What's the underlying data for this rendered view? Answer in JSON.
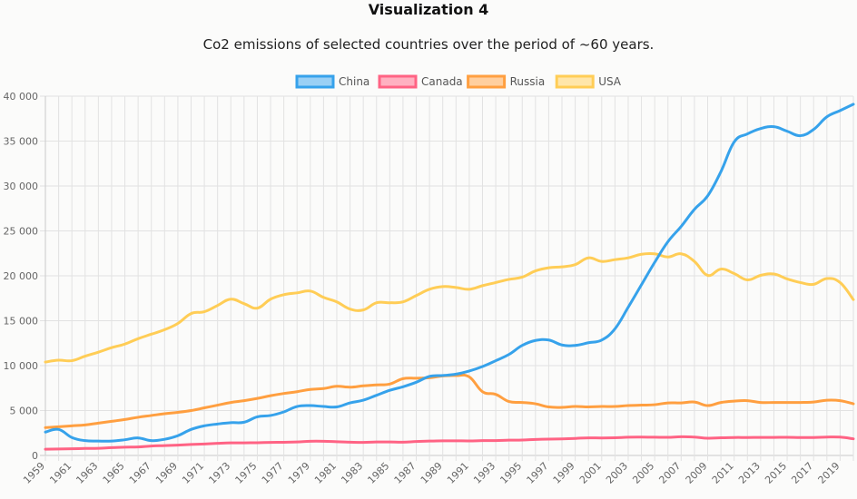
{
  "page": {
    "heading": "Visualization 4",
    "subheading": "Co2 emissions of selected countries over the period of ~60 years."
  },
  "chart_data": {
    "type": "line",
    "title": "",
    "xlabel": "",
    "ylabel": "",
    "ylim": [
      0,
      40000
    ],
    "y_ticks": [
      0,
      5000,
      10000,
      15000,
      20000,
      25000,
      30000,
      35000,
      40000
    ],
    "y_tick_labels": [
      "0",
      "5 000",
      "10 000",
      "15 000",
      "20 000",
      "25 000",
      "30 000",
      "35 000",
      "40 000"
    ],
    "x_tick_labels": [
      "1959",
      "1961",
      "1963",
      "1965",
      "1967",
      "1969",
      "1971",
      "1973",
      "1975",
      "1977",
      "1979",
      "1981",
      "1983",
      "1985",
      "1987",
      "1989",
      "1991",
      "1993",
      "1995",
      "1997",
      "1999",
      "2001",
      "2003",
      "2005",
      "2007",
      "2009",
      "2011",
      "2013",
      "2015",
      "2017",
      "2019"
    ],
    "grid": true,
    "legend_position": "top",
    "x": [
      1959,
      1960,
      1961,
      1962,
      1963,
      1964,
      1965,
      1966,
      1967,
      1968,
      1969,
      1970,
      1971,
      1972,
      1973,
      1974,
      1975,
      1976,
      1977,
      1978,
      1979,
      1980,
      1981,
      1982,
      1983,
      1984,
      1985,
      1986,
      1987,
      1988,
      1989,
      1990,
      1991,
      1992,
      1993,
      1994,
      1995,
      1996,
      1997,
      1998,
      1999,
      2000,
      2001,
      2002,
      2003,
      2004,
      2005,
      2006,
      2007,
      2008,
      2009,
      2010,
      2011,
      2012,
      2013,
      2014,
      2015,
      2016,
      2017,
      2018,
      2019,
      2020
    ],
    "series": [
      {
        "name": "China",
        "color": "#36a2eb",
        "fill": "#9ad0f5",
        "values": [
          2600,
          2900,
          2000,
          1650,
          1600,
          1600,
          1750,
          1950,
          1650,
          1800,
          2200,
          2900,
          3300,
          3500,
          3650,
          3700,
          4300,
          4450,
          4850,
          5450,
          5550,
          5450,
          5400,
          5850,
          6150,
          6700,
          7250,
          7650,
          8150,
          8800,
          8900,
          9050,
          9400,
          9900,
          10550,
          11250,
          12250,
          12800,
          12850,
          12300,
          12250,
          12550,
          12850,
          14100,
          16500,
          19000,
          21500,
          23800,
          25500,
          27400,
          28900,
          31600,
          34900,
          35800,
          36400,
          36600,
          36100,
          35600,
          36300,
          37700,
          38400,
          39100
        ]
      },
      {
        "name": "Canada",
        "color": "#ff6384",
        "fill": "#ffb1c1",
        "values": [
          700,
          720,
          740,
          780,
          800,
          870,
          920,
          950,
          1050,
          1100,
          1150,
          1220,
          1280,
          1350,
          1400,
          1400,
          1420,
          1450,
          1470,
          1500,
          1580,
          1580,
          1530,
          1480,
          1450,
          1500,
          1500,
          1480,
          1550,
          1600,
          1630,
          1630,
          1620,
          1650,
          1660,
          1700,
          1720,
          1780,
          1820,
          1850,
          1900,
          1960,
          1950,
          1970,
          2030,
          2040,
          2030,
          2020,
          2080,
          2050,
          1920,
          1970,
          2000,
          2000,
          2010,
          2010,
          2020,
          1990,
          2000,
          2050,
          2040,
          1850
        ]
      },
      {
        "name": "Russia",
        "color": "#ff9f40",
        "fill": "#ffcf9f",
        "values": [
          3100,
          3200,
          3300,
          3400,
          3600,
          3800,
          4000,
          4250,
          4450,
          4650,
          4800,
          5000,
          5300,
          5600,
          5900,
          6100,
          6350,
          6650,
          6900,
          7100,
          7350,
          7450,
          7700,
          7600,
          7750,
          7850,
          7950,
          8550,
          8600,
          8650,
          8850,
          8900,
          8750,
          7100,
          6800,
          6000,
          5900,
          5750,
          5400,
          5350,
          5450,
          5400,
          5450,
          5450,
          5550,
          5600,
          5650,
          5850,
          5850,
          5950,
          5550,
          5900,
          6050,
          6100,
          5900,
          5900,
          5900,
          5900,
          5950,
          6150,
          6100,
          5750
        ]
      },
      {
        "name": "USA",
        "color": "#ffcd56",
        "fill": "#ffe6aa",
        "values": [
          10400,
          10600,
          10550,
          11050,
          11500,
          12000,
          12400,
          13000,
          13500,
          14000,
          14700,
          15800,
          16000,
          16700,
          17400,
          16900,
          16400,
          17400,
          17900,
          18100,
          18300,
          17600,
          17100,
          16300,
          16200,
          17000,
          17000,
          17100,
          17800,
          18500,
          18800,
          18700,
          18500,
          18900,
          19250,
          19600,
          19850,
          20550,
          20900,
          21000,
          21250,
          22000,
          21600,
          21800,
          22000,
          22400,
          22450,
          22100,
          22450,
          21600,
          20050,
          20750,
          20250,
          19550,
          20050,
          20200,
          19650,
          19250,
          19050,
          19700,
          19250,
          17350
        ]
      }
    ]
  }
}
